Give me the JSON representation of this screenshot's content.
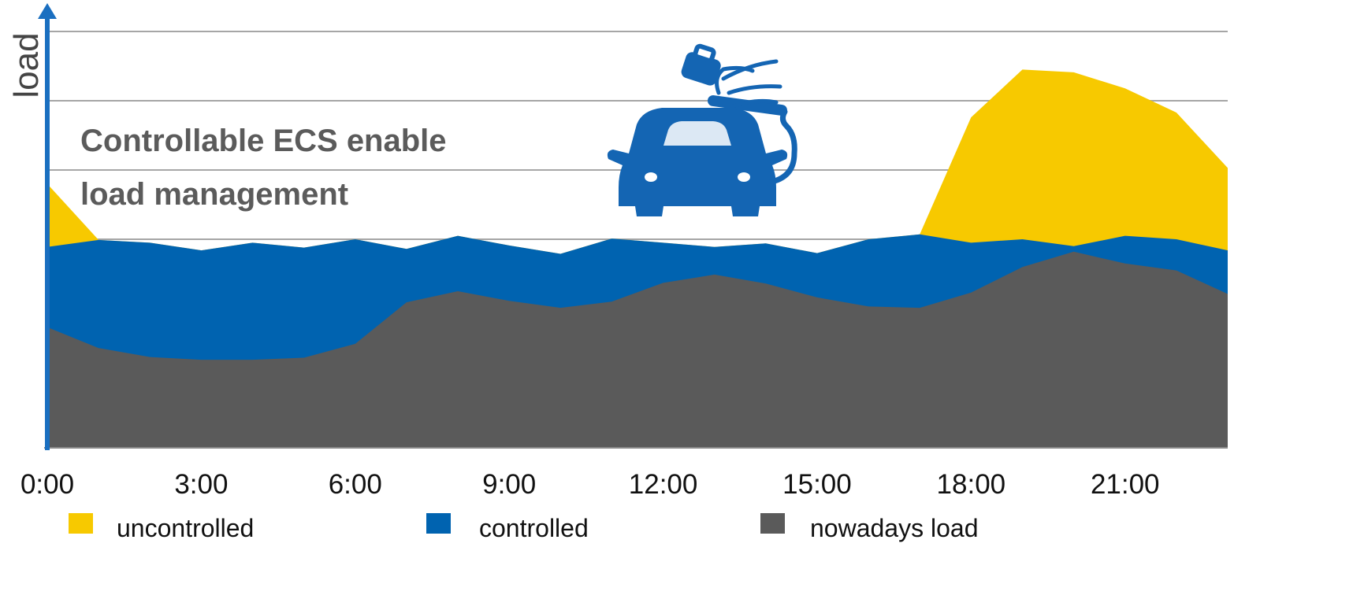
{
  "chart_data": {
    "type": "area",
    "stacked": true,
    "title": "",
    "xlabel": "",
    "ylabel": "load",
    "x": [
      "0:00",
      "1:00",
      "2:00",
      "3:00",
      "4:00",
      "5:00",
      "6:00",
      "7:00",
      "8:00",
      "9:00",
      "10:00",
      "11:00",
      "12:00",
      "13:00",
      "14:00",
      "15:00",
      "16:00",
      "17:00",
      "18:00",
      "19:00",
      "20:00",
      "21:00",
      "22:00",
      "23:00"
    ],
    "x_tick_labels": [
      "0:00",
      "3:00",
      "6:00",
      "9:00",
      "12:00",
      "15:00",
      "18:00",
      "21:00"
    ],
    "ylim": [
      0,
      6
    ],
    "y_ticks_shown": false,
    "grid": true,
    "legend_position": "bottom",
    "series": [
      {
        "name": "nowadays load",
        "color": "#5a5a5a",
        "values": [
          1.73,
          1.43,
          1.3,
          1.26,
          1.26,
          1.29,
          1.49,
          2.09,
          2.25,
          2.11,
          2.01,
          2.1,
          2.37,
          2.49,
          2.36,
          2.16,
          2.03,
          2.01,
          2.23,
          2.6,
          2.82,
          2.65,
          2.55,
          2.21
        ]
      },
      {
        "name": "controlled",
        "color": "#0063b0",
        "values": [
          2.89,
          2.99,
          2.95,
          2.84,
          2.95,
          2.88,
          3.0,
          2.86,
          3.05,
          2.91,
          2.79,
          3.01,
          2.95,
          2.89,
          2.94,
          2.8,
          3.0,
          3.07,
          2.95,
          3.0,
          2.9,
          3.05,
          3.0,
          2.84
        ]
      },
      {
        "name": "uncontrolled",
        "color": "#f7c900",
        "values": [
          3.8,
          2.99,
          2.95,
          2.84,
          2.95,
          2.88,
          3.0,
          2.86,
          3.05,
          2.91,
          2.79,
          3.01,
          2.95,
          2.89,
          2.94,
          2.8,
          3.0,
          3.07,
          4.76,
          5.45,
          5.41,
          5.18,
          4.83,
          4.03
        ]
      }
    ],
    "annotation": [
      "Controllable ECS enable",
      "load management"
    ],
    "colors": {
      "axis": "#1a6fc0",
      "grid": "#a6a6a6",
      "car_icon": "#1465b3"
    }
  },
  "legend": [
    {
      "label": "uncontrolled",
      "color": "#f7c900"
    },
    {
      "label": "controlled",
      "color": "#0063b0"
    },
    {
      "label": "nowadays load",
      "color": "#5a5a5a"
    }
  ],
  "icons": {
    "illustration": "ev-charging-car-icon"
  }
}
